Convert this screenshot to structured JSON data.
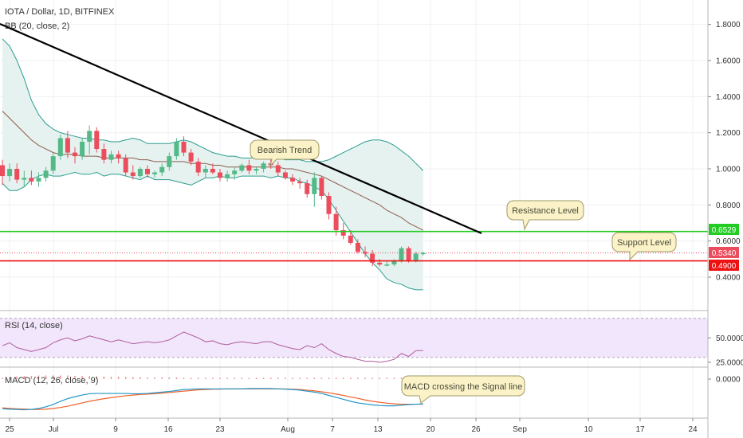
{
  "header": {
    "symbol_title": "IOTA / Dollar, 1D, BITFINEX",
    "bb_label": "BB (20, close, 2)",
    "rsi_label": "RSI (14, close)",
    "macd_label": "MACD (12, 26, close, 9)"
  },
  "annotations": {
    "bearish_trend": "Bearish Trend",
    "resistance_level": "Resistance Level",
    "support_level": "Support Level",
    "macd_cross": "MACD crossing the Signal line"
  },
  "price_badges": {
    "resistance": "0.6529",
    "current": "0.5340",
    "support": "0.4900"
  },
  "colors": {
    "up": "#53b987",
    "down": "#eb4d5c",
    "bb_band": "#2a9d8f",
    "bb_basis": "#8d5b4c",
    "bb_fill": "#e6f2f0",
    "rsi_line": "#b15c9e",
    "rsi_fill": "#f1e6fb",
    "macd_line": "#2196c8",
    "signal_line": "#f0622c",
    "resistance_line": "#22cc22",
    "support_line": "#ee1111",
    "trend_line": "#000000",
    "callout_fill": "#fbf3c7",
    "callout_stroke": "#9f9968"
  },
  "chart_data": [
    {
      "type": "candlestick",
      "title": "IOTA / Dollar, 1D, BITFINEX",
      "x_ticks": [
        "25",
        "Jul",
        "9",
        "16",
        "23",
        "Aug",
        "7",
        "13",
        "20",
        "26",
        "Sep",
        "10",
        "17",
        "24"
      ],
      "y_ticks": [
        "0.4000",
        "0.6000",
        "0.8000",
        "1.0000",
        "1.2000",
        "1.4000",
        "1.6000",
        "1.8000"
      ],
      "ylim": [
        0.26,
        1.95
      ],
      "candles": [
        [
          1.02,
          1.05,
          0.91,
          0.96
        ],
        [
          0.96,
          1.03,
          0.93,
          1.0
        ],
        [
          1.0,
          1.03,
          0.92,
          0.94
        ],
        [
          0.94,
          0.99,
          0.9,
          0.95
        ],
        [
          0.95,
          0.99,
          0.91,
          0.93
        ],
        [
          0.93,
          0.98,
          0.9,
          0.95
        ],
        [
          0.95,
          1.01,
          0.93,
          0.99
        ],
        [
          0.99,
          1.09,
          0.97,
          1.07
        ],
        [
          1.07,
          1.19,
          1.05,
          1.17
        ],
        [
          1.17,
          1.21,
          1.06,
          1.09
        ],
        [
          1.09,
          1.12,
          1.03,
          1.07
        ],
        [
          1.07,
          1.17,
          1.05,
          1.15
        ],
        [
          1.15,
          1.24,
          1.08,
          1.21
        ],
        [
          1.21,
          1.23,
          1.09,
          1.11
        ],
        [
          1.11,
          1.14,
          1.03,
          1.05
        ],
        [
          1.05,
          1.1,
          1.03,
          1.08
        ],
        [
          1.08,
          1.1,
          1.03,
          1.06
        ],
        [
          1.06,
          1.08,
          0.96,
          0.98
        ],
        [
          0.98,
          1.02,
          0.94,
          0.96
        ],
        [
          0.96,
          1.01,
          0.95,
          1.0
        ],
        [
          1.0,
          1.02,
          0.95,
          0.97
        ],
        [
          0.97,
          0.99,
          0.95,
          0.98
        ],
        [
          0.98,
          1.03,
          0.96,
          1.01
        ],
        [
          1.01,
          1.09,
          0.99,
          1.07
        ],
        [
          1.07,
          1.17,
          1.05,
          1.15
        ],
        [
          1.15,
          1.18,
          1.07,
          1.09
        ],
        [
          1.09,
          1.11,
          1.02,
          1.04
        ],
        [
          1.04,
          1.06,
          0.96,
          0.98
        ],
        [
          0.98,
          1.02,
          0.95,
          1.0
        ],
        [
          1.0,
          1.03,
          0.97,
          0.98
        ],
        [
          0.98,
          1.0,
          0.93,
          0.95
        ],
        [
          0.95,
          0.99,
          0.93,
          0.97
        ],
        [
          0.97,
          1.01,
          0.94,
          0.99
        ],
        [
          0.99,
          1.03,
          0.98,
          1.02
        ],
        [
          1.02,
          1.05,
          0.97,
          0.99
        ],
        [
          0.99,
          1.01,
          0.97,
          1.0
        ],
        [
          1.0,
          1.04,
          0.98,
          1.03
        ],
        [
          1.03,
          1.08,
          1.0,
          1.02
        ],
        [
          1.02,
          1.04,
          0.96,
          0.98
        ],
        [
          0.98,
          0.99,
          0.94,
          0.95
        ],
        [
          0.95,
          0.97,
          0.91,
          0.93
        ],
        [
          0.93,
          0.95,
          0.89,
          0.92
        ],
        [
          0.92,
          0.94,
          0.84,
          0.86
        ],
        [
          0.86,
          0.98,
          0.79,
          0.95
        ],
        [
          0.95,
          0.96,
          0.83,
          0.85
        ],
        [
          0.85,
          0.87,
          0.72,
          0.75
        ],
        [
          0.75,
          0.79,
          0.63,
          0.66
        ],
        [
          0.66,
          0.7,
          0.61,
          0.63
        ],
        [
          0.63,
          0.66,
          0.58,
          0.59
        ],
        [
          0.59,
          0.61,
          0.53,
          0.54
        ],
        [
          0.54,
          0.57,
          0.51,
          0.53
        ],
        [
          0.53,
          0.55,
          0.46,
          0.48
        ],
        [
          0.48,
          0.5,
          0.46,
          0.47
        ],
        [
          0.47,
          0.49,
          0.46,
          0.47
        ],
        [
          0.47,
          0.5,
          0.46,
          0.49
        ],
        [
          0.49,
          0.57,
          0.48,
          0.56
        ],
        [
          0.56,
          0.57,
          0.48,
          0.49
        ],
        [
          0.49,
          0.54,
          0.48,
          0.53
        ],
        [
          0.53,
          0.54,
          0.52,
          0.534
        ]
      ],
      "bb_upper": [
        1.72,
        1.68,
        1.6,
        1.5,
        1.38,
        1.3,
        1.25,
        1.22,
        1.2,
        1.19,
        1.18,
        1.17,
        1.17,
        1.16,
        1.16,
        1.15,
        1.15,
        1.16,
        1.17,
        1.16,
        1.14,
        1.14,
        1.14,
        1.14,
        1.15,
        1.16,
        1.15,
        1.13,
        1.11,
        1.09,
        1.08,
        1.07,
        1.07,
        1.06,
        1.06,
        1.06,
        1.06,
        1.07,
        1.06,
        1.05,
        1.05,
        1.05,
        1.04,
        1.04,
        1.04,
        1.05,
        1.07,
        1.09,
        1.11,
        1.13,
        1.15,
        1.16,
        1.16,
        1.15,
        1.13,
        1.1,
        1.07,
        1.03,
        0.99
      ],
      "bb_basis": [
        1.32,
        1.28,
        1.24,
        1.2,
        1.16,
        1.13,
        1.11,
        1.09,
        1.08,
        1.08,
        1.08,
        1.07,
        1.07,
        1.07,
        1.06,
        1.06,
        1.06,
        1.06,
        1.06,
        1.05,
        1.05,
        1.04,
        1.04,
        1.04,
        1.04,
        1.04,
        1.03,
        1.03,
        1.03,
        1.02,
        1.02,
        1.01,
        1.01,
        1.01,
        1.01,
        1.01,
        1.01,
        1.01,
        1.01,
        1.0,
        1.0,
        0.99,
        0.98,
        0.97,
        0.96,
        0.94,
        0.92,
        0.9,
        0.88,
        0.86,
        0.84,
        0.82,
        0.8,
        0.77,
        0.75,
        0.73,
        0.7,
        0.68,
        0.66
      ],
      "bb_lower": [
        0.92,
        0.88,
        0.88,
        0.9,
        0.94,
        0.96,
        0.97,
        0.96,
        0.96,
        0.97,
        0.98,
        0.97,
        0.97,
        0.98,
        0.96,
        0.97,
        0.97,
        0.96,
        0.95,
        0.94,
        0.96,
        0.94,
        0.94,
        0.94,
        0.93,
        0.92,
        0.91,
        0.93,
        0.95,
        0.95,
        0.96,
        0.95,
        0.95,
        0.96,
        0.96,
        0.96,
        0.96,
        0.95,
        0.96,
        0.95,
        0.95,
        0.93,
        0.92,
        0.9,
        0.88,
        0.83,
        0.77,
        0.71,
        0.65,
        0.59,
        0.53,
        0.48,
        0.44,
        0.39,
        0.37,
        0.36,
        0.34,
        0.33,
        0.33
      ],
      "levels": {
        "resistance": 0.6529,
        "current": 0.534,
        "support": 0.49
      }
    },
    {
      "type": "line",
      "title": "RSI (14, close)",
      "y_ticks": [
        "25.0000",
        "50.0000"
      ],
      "ylim": [
        20,
        78
      ],
      "bands": [
        30,
        70
      ],
      "values": [
        42,
        45,
        40,
        38,
        36,
        38,
        40,
        45,
        48,
        50,
        47,
        49,
        52,
        50,
        48,
        46,
        48,
        46,
        44,
        45,
        46,
        45,
        46,
        48,
        52,
        56,
        53,
        50,
        46,
        47,
        44,
        43,
        45,
        46,
        45,
        44,
        46,
        46,
        43,
        41,
        39,
        38,
        42,
        40,
        44,
        38,
        34,
        31,
        30,
        28,
        26,
        26,
        25,
        26,
        28,
        34,
        31,
        37,
        37
      ]
    },
    {
      "type": "line",
      "title": "MACD (12, 26, close, 9)",
      "y_ticks": [
        "0.0000"
      ],
      "ylim": [
        -0.1,
        0.018
      ],
      "macd": [
        -0.091,
        -0.092,
        -0.093,
        -0.094,
        -0.093,
        -0.09,
        -0.085,
        -0.078,
        -0.068,
        -0.06,
        -0.054,
        -0.049,
        -0.045,
        -0.044,
        -0.044,
        -0.044,
        -0.044,
        -0.044,
        -0.045,
        -0.045,
        -0.044,
        -0.042,
        -0.04,
        -0.038,
        -0.035,
        -0.032,
        -0.031,
        -0.03,
        -0.03,
        -0.03,
        -0.03,
        -0.03,
        -0.03,
        -0.03,
        -0.029,
        -0.029,
        -0.029,
        -0.029,
        -0.03,
        -0.031,
        -0.032,
        -0.034,
        -0.037,
        -0.04,
        -0.044,
        -0.05,
        -0.056,
        -0.062,
        -0.068,
        -0.073,
        -0.076,
        -0.079,
        -0.081,
        -0.082,
        -0.082,
        -0.08,
        -0.078,
        -0.077,
        -0.076
      ],
      "signal": [
        -0.088,
        -0.09,
        -0.091,
        -0.092,
        -0.093,
        -0.093,
        -0.092,
        -0.09,
        -0.087,
        -0.083,
        -0.078,
        -0.073,
        -0.068,
        -0.064,
        -0.06,
        -0.057,
        -0.054,
        -0.051,
        -0.049,
        -0.047,
        -0.046,
        -0.045,
        -0.043,
        -0.041,
        -0.039,
        -0.037,
        -0.035,
        -0.033,
        -0.032,
        -0.031,
        -0.031,
        -0.03,
        -0.03,
        -0.03,
        -0.03,
        -0.03,
        -0.03,
        -0.03,
        -0.03,
        -0.03,
        -0.031,
        -0.032,
        -0.034,
        -0.036,
        -0.039,
        -0.042,
        -0.046,
        -0.05,
        -0.055,
        -0.059,
        -0.064,
        -0.068,
        -0.071,
        -0.074,
        -0.076,
        -0.077,
        -0.077,
        -0.077,
        -0.077
      ],
      "histogram": [
        0.004,
        0.006,
        0.008,
        0.009,
        0.01,
        0.011,
        0.011,
        0.011,
        0.011,
        0.011,
        0.01,
        0.009,
        0.009,
        0.008,
        0.008,
        0.007,
        0.007,
        0.006,
        0.006,
        0.006,
        0.005,
        0.005,
        0.005,
        0.005,
        0.005,
        0.004,
        0.004,
        0.004,
        0.004,
        0.004,
        0.004,
        0.004,
        0.004,
        0.004,
        0.004,
        0.004,
        0.004,
        0.004,
        0.004,
        0.004,
        0.004,
        0.004,
        0.004,
        0.004,
        0.004,
        0.004,
        0.004,
        0.004,
        0.004,
        0.004,
        0.004,
        0.004,
        0.004,
        0.004,
        0.004,
        0.004,
        0.004,
        0.004,
        0.004
      ]
    }
  ]
}
